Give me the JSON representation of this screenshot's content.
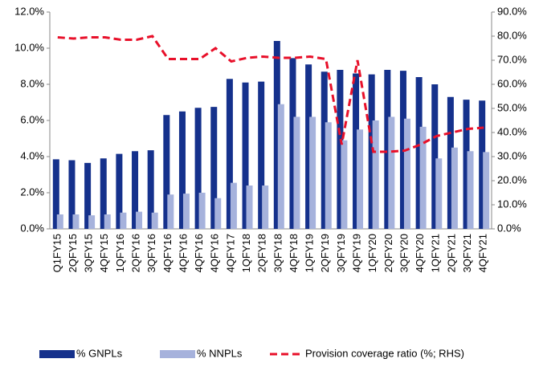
{
  "chart_data": {
    "type": "bar",
    "categories": [
      "Q1FY15",
      "2QFY15",
      "3QFY15",
      "4QFY15",
      "1QFY16",
      "2QFY16",
      "3QFY16",
      "4QFY16",
      "4QFY16",
      "4QFY16",
      "4QFY16",
      "4QFY17",
      "1QFY18",
      "2QFY18",
      "3QFY18",
      "4QFY18",
      "1QFY19",
      "2QFY19",
      "3QFY19",
      "4QFY19",
      "1QFY20",
      "2QFY20",
      "3QFY20",
      "4QFY20",
      "1QFY21",
      "2QFY21",
      "3QFY21",
      "4QFY21"
    ],
    "series": [
      {
        "name": "% GNPLs",
        "color": "#15318c",
        "values": [
          3.85,
          3.8,
          3.65,
          3.9,
          4.15,
          4.3,
          4.35,
          6.3,
          6.5,
          6.7,
          6.75,
          8.3,
          8.1,
          8.15,
          10.4,
          9.45,
          9.1,
          8.7,
          8.8,
          8.6,
          8.55,
          8.8,
          8.75,
          8.4,
          8.0,
          7.3,
          7.15,
          7.1
        ]
      },
      {
        "name": "% NNPLs",
        "color": "#a6b2dc",
        "values": [
          0.8,
          0.8,
          0.75,
          0.8,
          0.9,
          0.95,
          0.9,
          1.9,
          1.95,
          2.0,
          1.7,
          2.55,
          2.4,
          2.4,
          6.9,
          6.2,
          6.2,
          5.9,
          4.9,
          5.5,
          6.0,
          6.2,
          6.1,
          5.65,
          3.9,
          4.5,
          4.3,
          4.25
        ]
      },
      {
        "name": "Provision coverage ratio (%; RHS)",
        "color": "#e8102a",
        "type": "line",
        "dashed": true,
        "axis": "y2",
        "values": [
          79.5,
          79,
          79.5,
          79.5,
          78.5,
          78.5,
          80,
          70.5,
          70.5,
          70.5,
          75,
          69.5,
          71,
          71.5,
          71,
          71,
          71.5,
          70.5,
          35,
          70,
          32,
          32,
          32.5,
          35,
          38.5,
          40,
          41.5,
          42
        ]
      }
    ],
    "ylim": [
      0,
      12
    ],
    "yticks": [
      {
        "value": 0,
        "label": "0.0%"
      },
      {
        "value": 2,
        "label": "2.0%"
      },
      {
        "value": 4,
        "label": "4.0%"
      },
      {
        "value": 6,
        "label": "6.0%"
      },
      {
        "value": 8,
        "label": "8.0%"
      },
      {
        "value": 10,
        "label": "10.0%"
      },
      {
        "value": 12,
        "label": "12.0%"
      }
    ],
    "y2lim": [
      0,
      90
    ],
    "y2ticks": [
      {
        "value": 0,
        "label": "0.0%"
      },
      {
        "value": 10,
        "label": "10.0%"
      },
      {
        "value": 20,
        "label": "20.0%"
      },
      {
        "value": 30,
        "label": "30.0%"
      },
      {
        "value": 40,
        "label": "40.0%"
      },
      {
        "value": 50,
        "label": "50.0%"
      },
      {
        "value": 60,
        "label": "60.0%"
      },
      {
        "value": 70,
        "label": "70.0%"
      },
      {
        "value": 80,
        "label": "80.0%"
      },
      {
        "value": 90,
        "label": "90.0%"
      }
    ],
    "legend": "bottom"
  }
}
